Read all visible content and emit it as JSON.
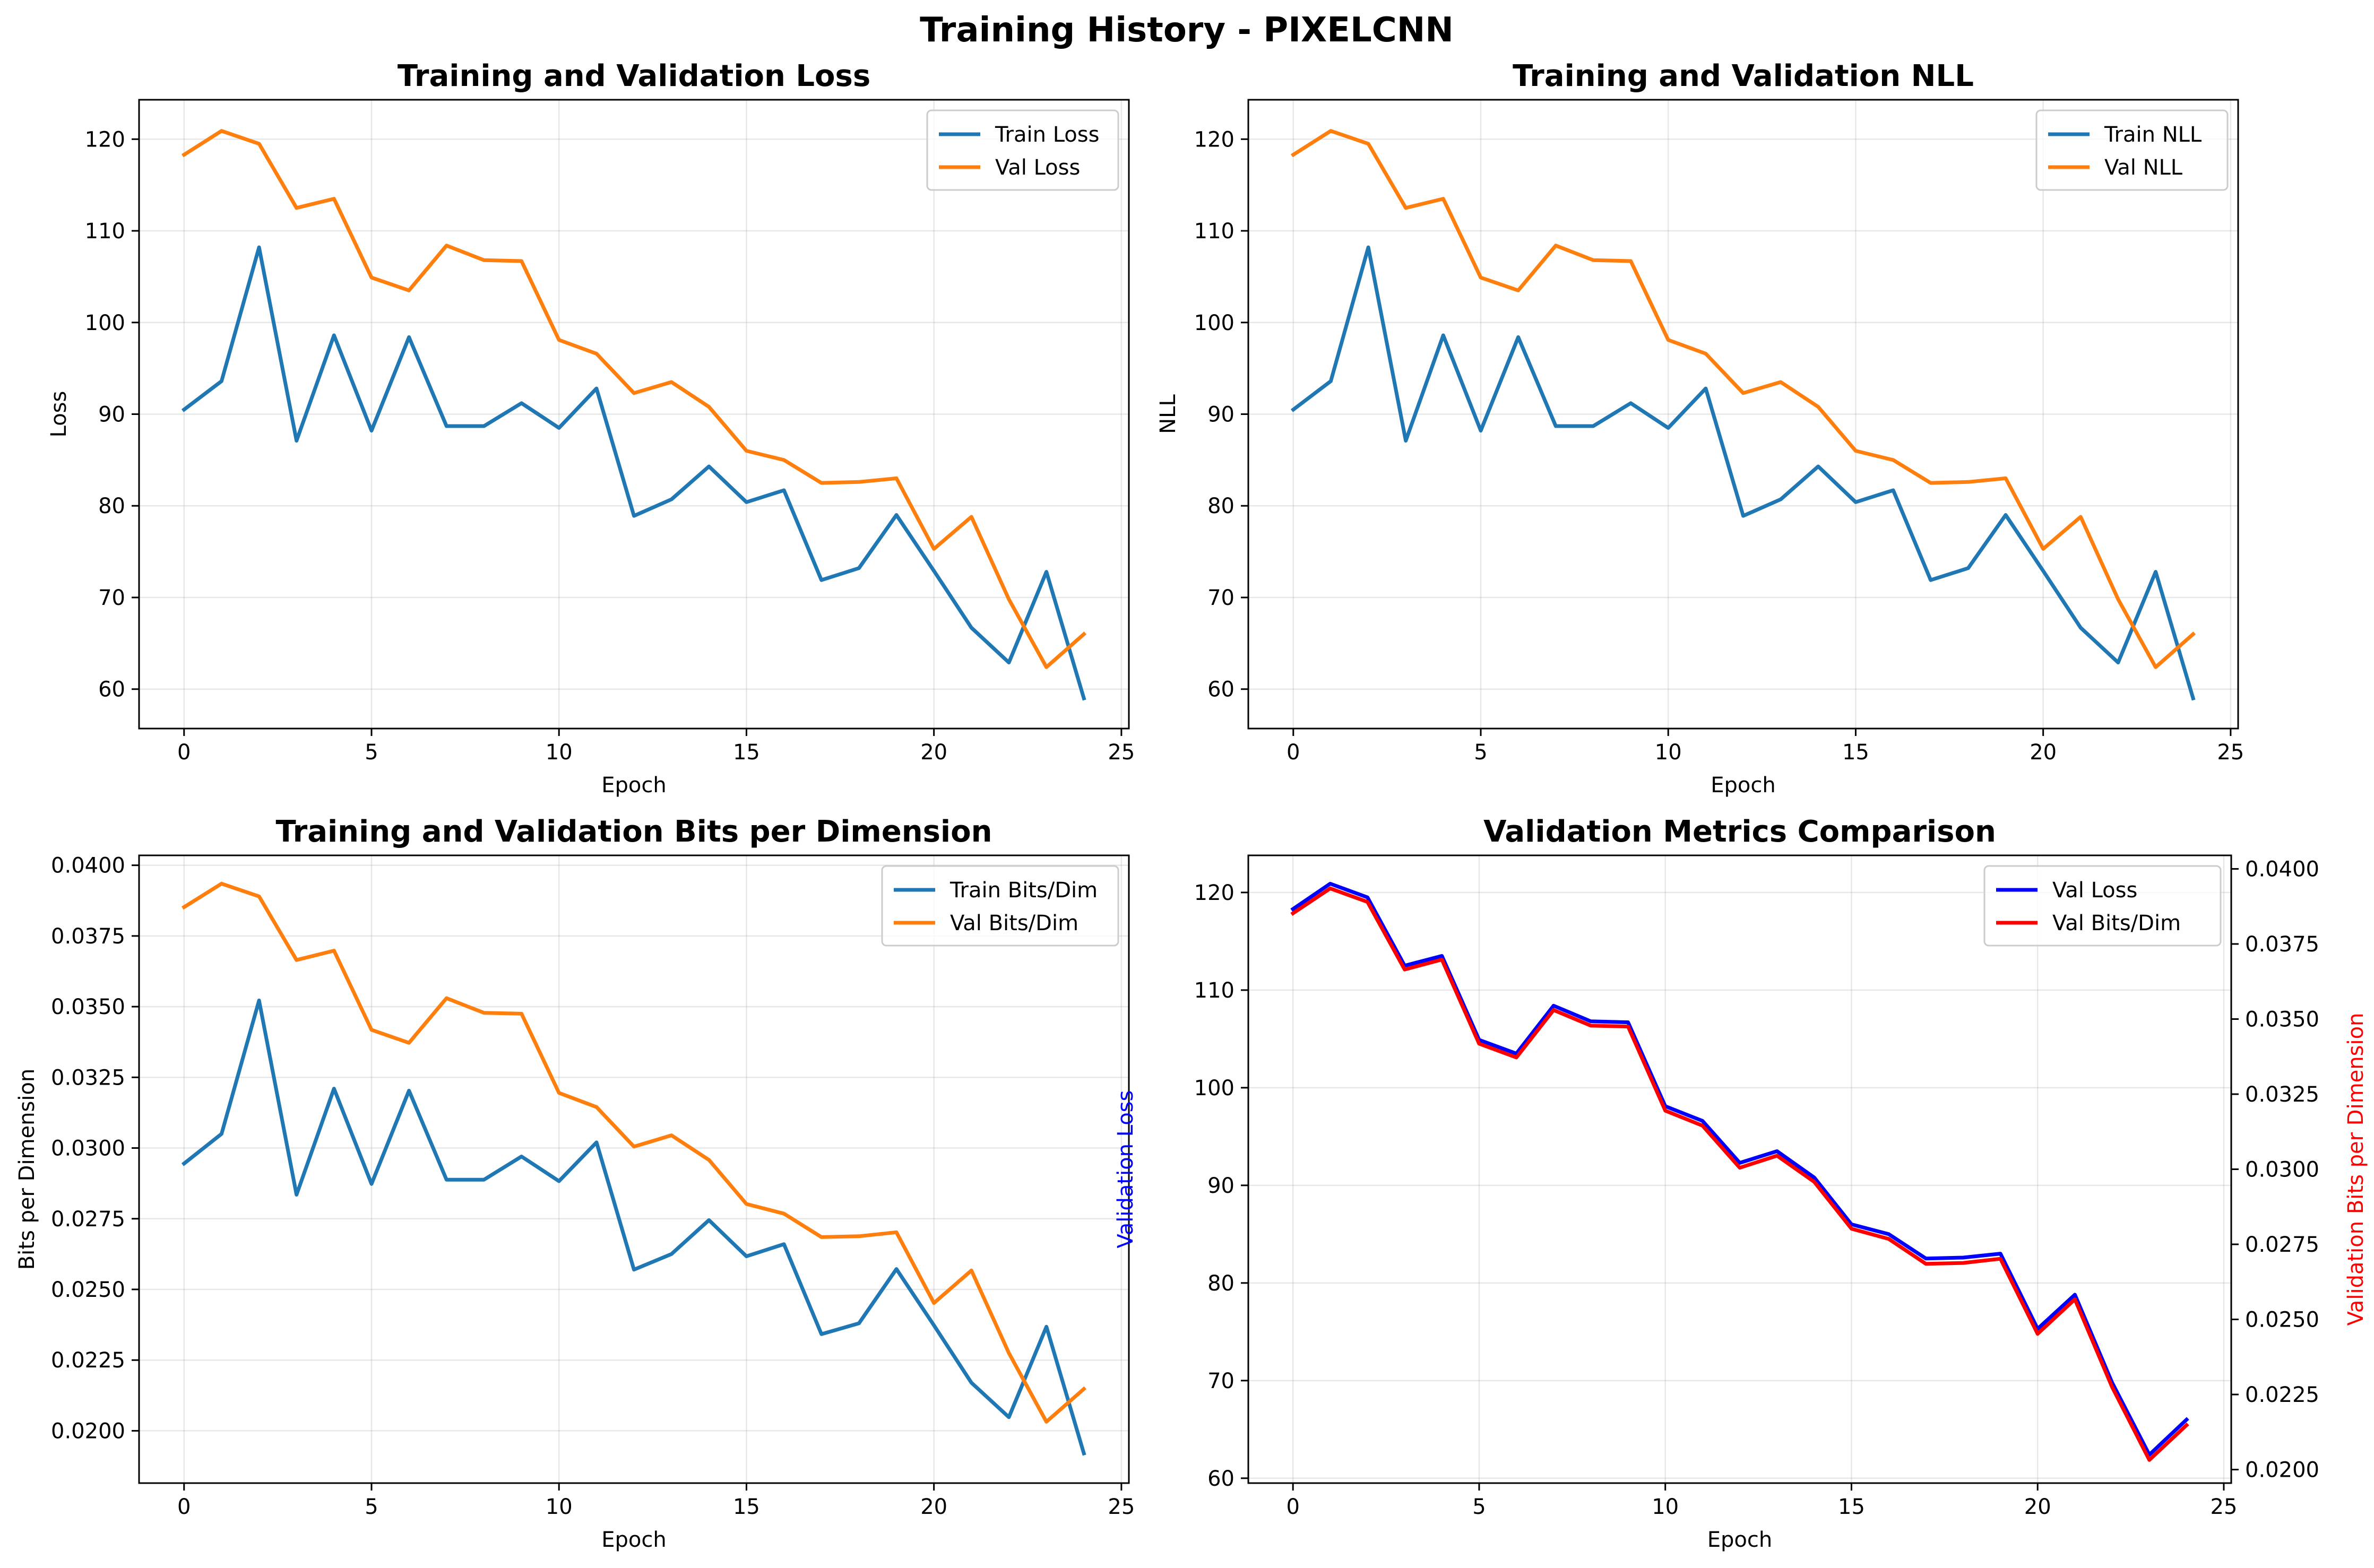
{
  "suptitle": "Training History - PIXELCNN",
  "colors": {
    "train": "#1f77b4",
    "val": "#ff7f0e",
    "val_loss_blue": "#0000ff",
    "val_bpd_red": "#ff0000",
    "grid": "#b0b0b0"
  },
  "chart_data": [
    {
      "type": "line",
      "title": "Training and Validation Loss",
      "xlabel": "Epoch",
      "ylabel": "Loss",
      "xlim": [
        -1.2,
        25.2
      ],
      "ylim": [
        55.7,
        124.3
      ],
      "xticks": [
        0,
        5,
        10,
        15,
        20,
        25
      ],
      "yticks": [
        60,
        70,
        80,
        90,
        100,
        110,
        120
      ],
      "ytick_labels": [
        "60",
        "70",
        "80",
        "90",
        "100",
        "110",
        "120"
      ],
      "grid": true,
      "legend": "upper right",
      "x": [
        0,
        1,
        2,
        3,
        4,
        5,
        6,
        7,
        8,
        9,
        10,
        11,
        12,
        13,
        14,
        15,
        16,
        17,
        18,
        19,
        20,
        21,
        22,
        23,
        24
      ],
      "series": [
        {
          "name": "Train Loss",
          "color": "#1f77b4",
          "values": [
            90.5,
            93.6,
            108.2,
            87.1,
            98.6,
            88.2,
            98.4,
            88.7,
            88.7,
            91.2,
            88.5,
            92.8,
            78.9,
            80.7,
            84.3,
            80.4,
            81.7,
            71.9,
            73.2,
            79.0,
            72.9,
            66.7,
            62.9,
            72.8,
            59.0
          ]
        },
        {
          "name": "Val Loss",
          "color": "#ff7f0e",
          "values": [
            118.3,
            120.9,
            119.5,
            112.5,
            113.5,
            104.9,
            103.5,
            108.4,
            106.8,
            106.7,
            98.1,
            96.6,
            92.3,
            93.5,
            90.8,
            86.0,
            85.0,
            82.5,
            82.6,
            83.0,
            75.3,
            78.8,
            69.8,
            62.4,
            66.0
          ]
        }
      ]
    },
    {
      "type": "line",
      "title": "Training and Validation NLL",
      "xlabel": "Epoch",
      "ylabel": "NLL",
      "xlim": [
        -1.2,
        25.2
      ],
      "ylim": [
        55.7,
        124.3
      ],
      "xticks": [
        0,
        5,
        10,
        15,
        20,
        25
      ],
      "yticks": [
        60,
        70,
        80,
        90,
        100,
        110,
        120
      ],
      "ytick_labels": [
        "60",
        "70",
        "80",
        "90",
        "100",
        "110",
        "120"
      ],
      "grid": true,
      "legend": "upper right",
      "x": [
        0,
        1,
        2,
        3,
        4,
        5,
        6,
        7,
        8,
        9,
        10,
        11,
        12,
        13,
        14,
        15,
        16,
        17,
        18,
        19,
        20,
        21,
        22,
        23,
        24
      ],
      "series": [
        {
          "name": "Train NLL",
          "color": "#1f77b4",
          "values": [
            90.5,
            93.6,
            108.2,
            87.1,
            98.6,
            88.2,
            98.4,
            88.7,
            88.7,
            91.2,
            88.5,
            92.8,
            78.9,
            80.7,
            84.3,
            80.4,
            81.7,
            71.9,
            73.2,
            79.0,
            72.9,
            66.7,
            62.9,
            72.8,
            59.0
          ]
        },
        {
          "name": "Val NLL",
          "color": "#ff7f0e",
          "values": [
            118.3,
            120.9,
            119.5,
            112.5,
            113.5,
            104.9,
            103.5,
            108.4,
            106.8,
            106.7,
            98.1,
            96.6,
            92.3,
            93.5,
            90.8,
            86.0,
            85.0,
            82.5,
            82.6,
            83.0,
            75.3,
            78.8,
            69.8,
            62.4,
            66.0
          ]
        }
      ]
    },
    {
      "type": "line",
      "title": "Training and Validation Bits per Dimension",
      "xlabel": "Epoch",
      "ylabel": "Bits per Dimension",
      "xlim": [
        -1.2,
        25.2
      ],
      "ylim": [
        0.01815,
        0.04035
      ],
      "xticks": [
        0,
        5,
        10,
        15,
        20,
        25
      ],
      "yticks": [
        0.02,
        0.0225,
        0.025,
        0.0275,
        0.03,
        0.0325,
        0.035,
        0.0375,
        0.04
      ],
      "ytick_labels": [
        "0.0200",
        "0.0225",
        "0.0250",
        "0.0275",
        "0.0300",
        "0.0325",
        "0.0350",
        "0.0375",
        "0.0400"
      ],
      "grid": true,
      "legend": "upper right",
      "x": [
        0,
        1,
        2,
        3,
        4,
        5,
        6,
        7,
        8,
        9,
        10,
        11,
        12,
        13,
        14,
        15,
        16,
        17,
        18,
        19,
        20,
        21,
        22,
        23,
        24
      ],
      "series": [
        {
          "name": "Train Bits/Dim",
          "color": "#1f77b4",
          "values": [
            0.02945,
            0.0305,
            0.03522,
            0.02835,
            0.0321,
            0.02873,
            0.03203,
            0.02888,
            0.02888,
            0.0297,
            0.02883,
            0.0302,
            0.0257,
            0.02625,
            0.02745,
            0.02617,
            0.0266,
            0.02342,
            0.0238,
            0.02572,
            0.02373,
            0.0217,
            0.02048,
            0.02368,
            0.0192
          ]
        },
        {
          "name": "Val Bits/Dim",
          "color": "#ff7f0e",
          "values": [
            0.03852,
            0.03935,
            0.0389,
            0.03665,
            0.03698,
            0.03418,
            0.03372,
            0.0353,
            0.03478,
            0.03475,
            0.03195,
            0.03145,
            0.03005,
            0.03045,
            0.02958,
            0.02802,
            0.02768,
            0.02685,
            0.02688,
            0.02702,
            0.02452,
            0.02567,
            0.02275,
            0.02032,
            0.02148
          ]
        }
      ]
    },
    {
      "type": "line",
      "title": "Validation Metrics Comparison",
      "xlabel": "Epoch",
      "ylabel": "Validation Loss",
      "ylabel_right": "Validation Bits per Dimension",
      "xlim": [
        -1.2,
        25.2
      ],
      "ylim": [
        59.5,
        123.8
      ],
      "ylim_right": [
        0.01955,
        0.04045
      ],
      "xticks": [
        0,
        5,
        10,
        15,
        20,
        25
      ],
      "yticks": [
        60,
        70,
        80,
        90,
        100,
        110,
        120
      ],
      "ytick_labels": [
        "60",
        "70",
        "80",
        "90",
        "100",
        "110",
        "120"
      ],
      "yticks_right": [
        0.02,
        0.0225,
        0.025,
        0.0275,
        0.03,
        0.0325,
        0.035,
        0.0375,
        0.04
      ],
      "ytick_labels_right": [
        "0.0200",
        "0.0225",
        "0.0250",
        "0.0275",
        "0.0300",
        "0.0325",
        "0.0350",
        "0.0375",
        "0.0400"
      ],
      "grid": true,
      "legend": "upper right",
      "x": [
        0,
        1,
        2,
        3,
        4,
        5,
        6,
        7,
        8,
        9,
        10,
        11,
        12,
        13,
        14,
        15,
        16,
        17,
        18,
        19,
        20,
        21,
        22,
        23,
        24
      ],
      "series": [
        {
          "name": "Val Loss",
          "color": "#0000ff",
          "axis": "left",
          "values": [
            118.3,
            120.9,
            119.5,
            112.5,
            113.5,
            104.9,
            103.5,
            108.4,
            106.8,
            106.7,
            98.1,
            96.6,
            92.3,
            93.5,
            90.8,
            86.0,
            85.0,
            82.5,
            82.6,
            83.0,
            75.3,
            78.8,
            69.8,
            62.4,
            66.0
          ]
        },
        {
          "name": "Val Bits/Dim",
          "color": "#ff0000",
          "axis": "right",
          "values": [
            0.03852,
            0.03935,
            0.0389,
            0.03665,
            0.03698,
            0.03418,
            0.03372,
            0.0353,
            0.03478,
            0.03475,
            0.03195,
            0.03145,
            0.03005,
            0.03045,
            0.02958,
            0.02802,
            0.02768,
            0.02685,
            0.02688,
            0.02702,
            0.02452,
            0.02567,
            0.02275,
            0.02032,
            0.02148
          ]
        }
      ]
    }
  ]
}
